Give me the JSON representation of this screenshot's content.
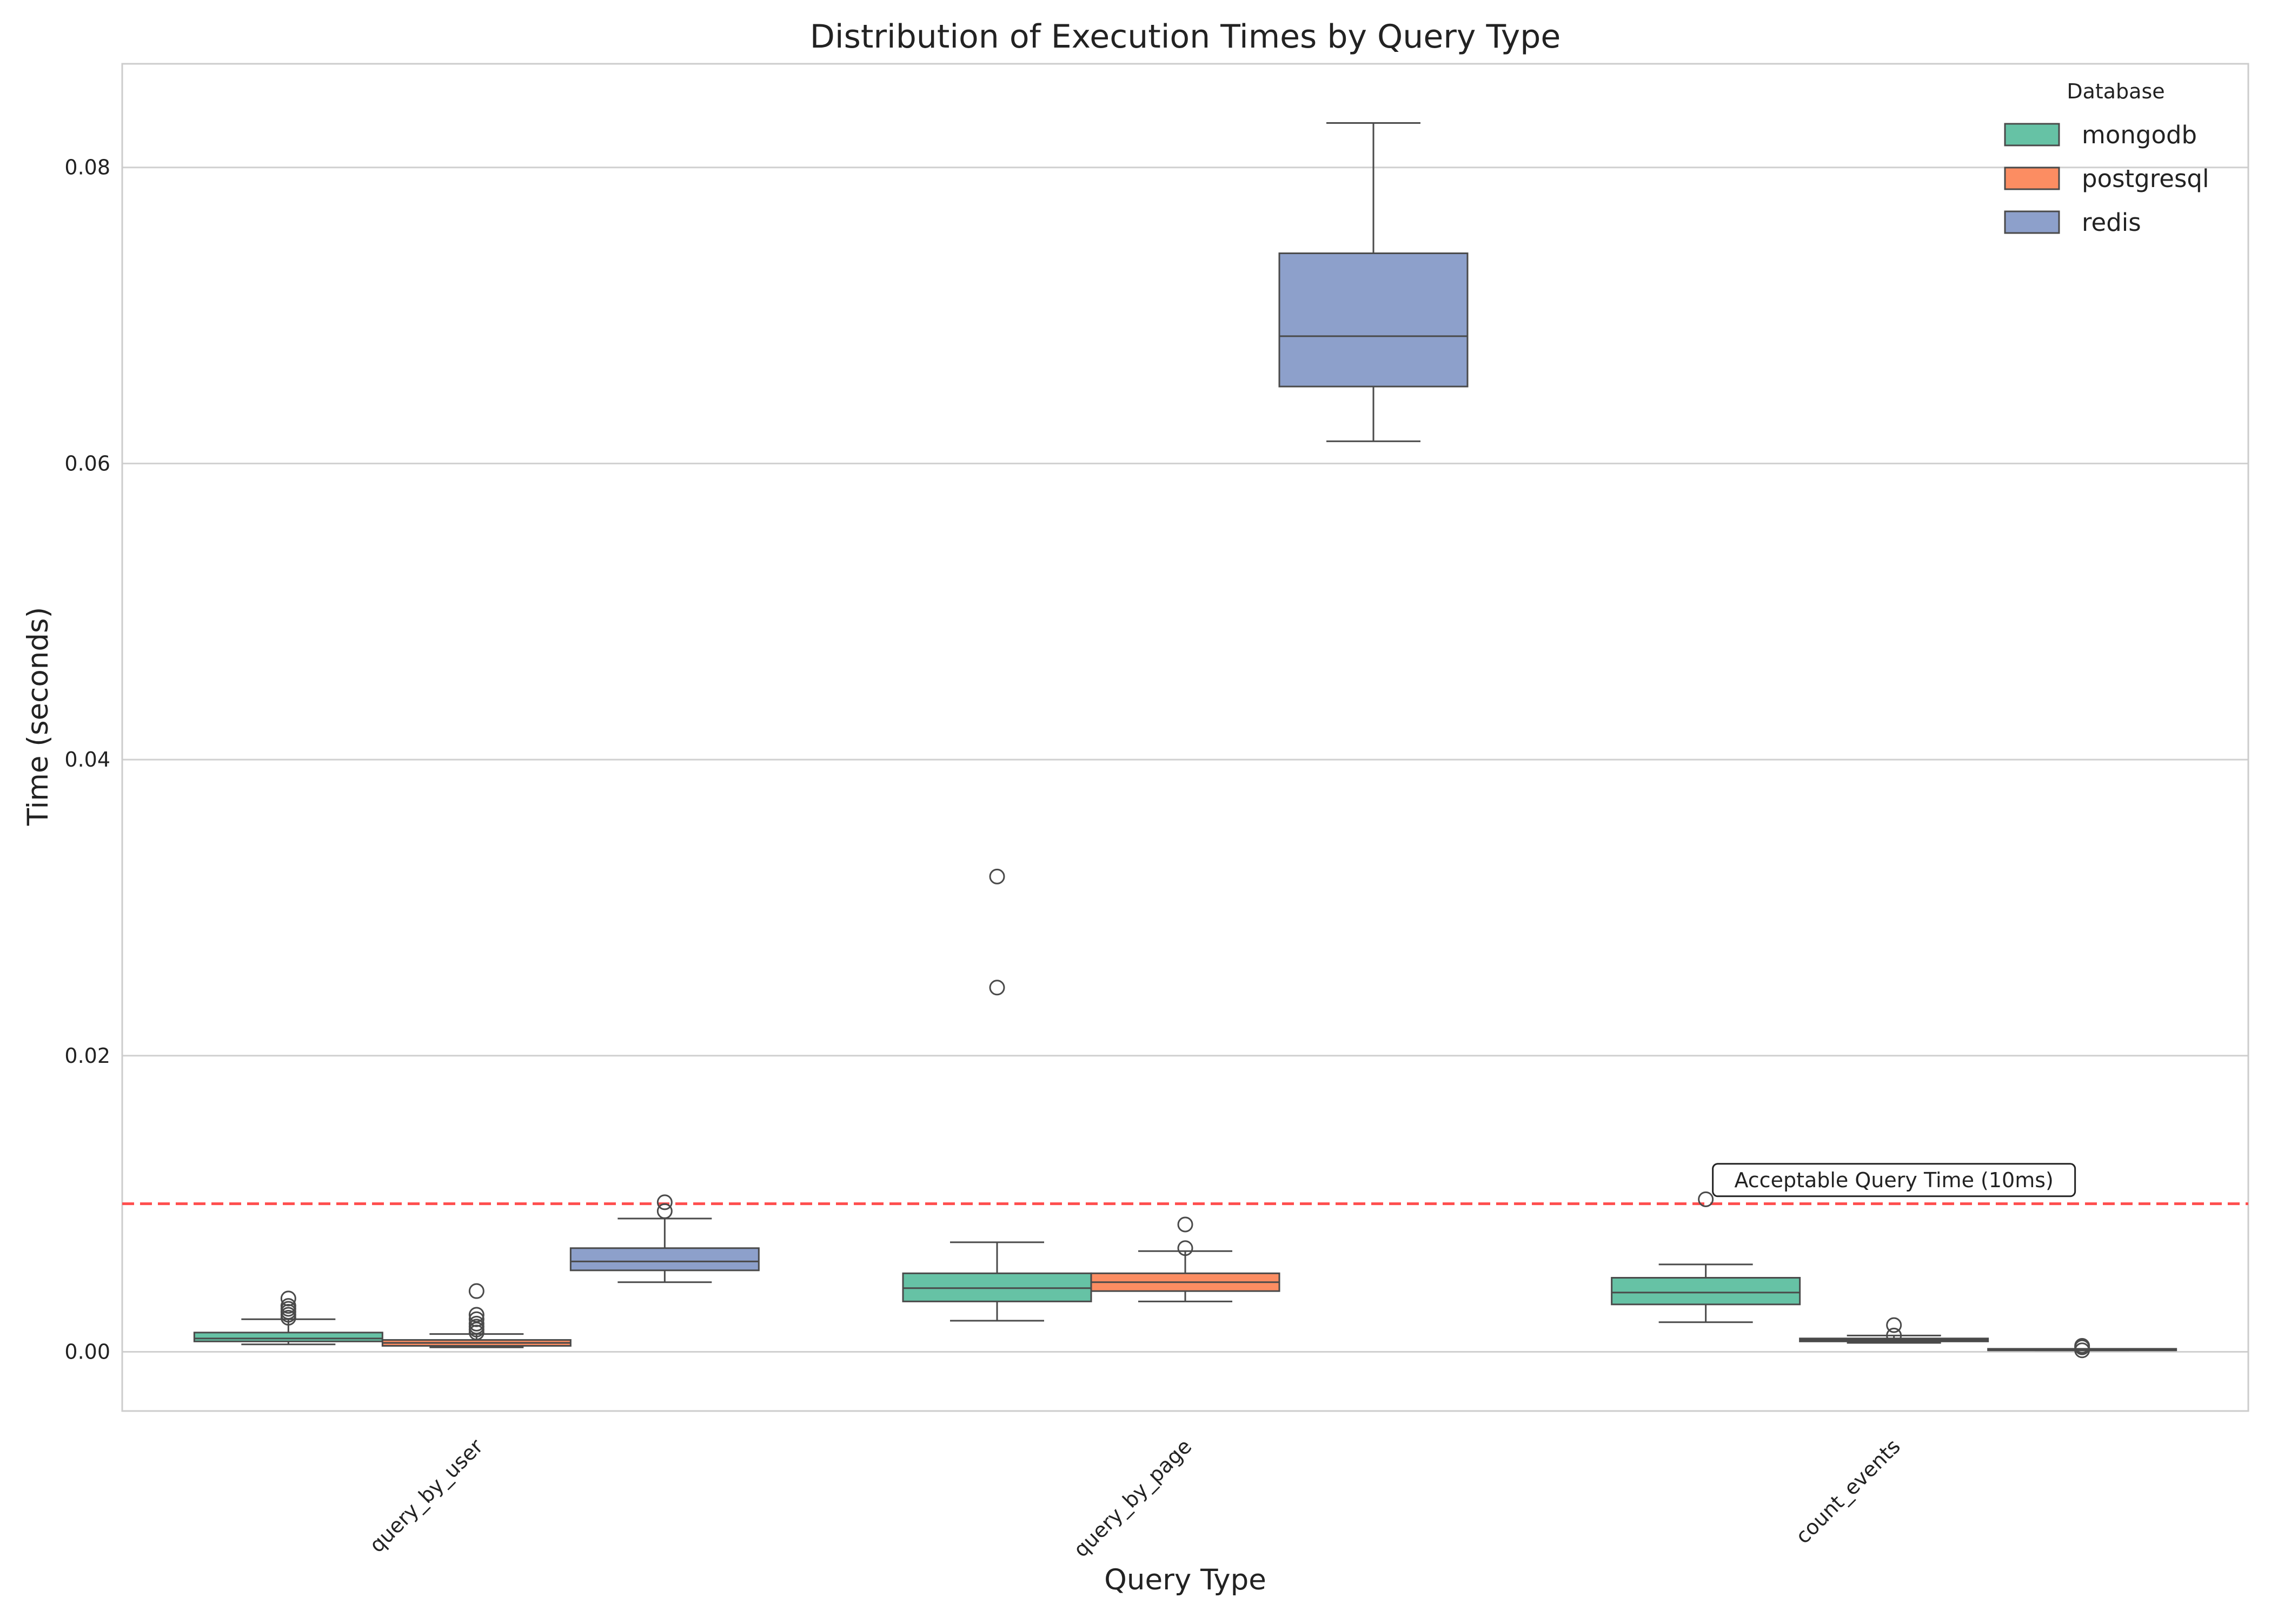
{
  "chart_data": {
    "type": "box",
    "title": "Distribution of Execution Times by Query Type",
    "xlabel": "Query Type",
    "ylabel": "Time (seconds)",
    "ylim": [
      -0.004,
      0.087
    ],
    "yticks": [
      0.0,
      0.02,
      0.04,
      0.06,
      0.08
    ],
    "ytick_labels": [
      "0.00",
      "0.02",
      "0.04",
      "0.06",
      "0.08"
    ],
    "grid": "y",
    "categories": [
      "query_by_user",
      "query_by_page",
      "count_events"
    ],
    "legend": {
      "title": "Database",
      "placement": "top-right",
      "entries": [
        "mongodb",
        "postgresql",
        "redis"
      ]
    },
    "series": [
      {
        "name": "mongodb",
        "color": "#66c2a5",
        "boxes": [
          {
            "category": "query_by_user",
            "whisker_low": 0.0005,
            "q1": 0.0007,
            "median": 0.0009,
            "q3": 0.0013,
            "whisker_high": 0.0022,
            "outliers": [
              0.0023,
              0.0025,
              0.0027,
              0.0029,
              0.0031,
              0.0036
            ]
          },
          {
            "category": "query_by_page",
            "whisker_low": 0.0021,
            "q1": 0.0034,
            "median": 0.0043,
            "q3": 0.0053,
            "whisker_high": 0.0074,
            "outliers": [
              0.0246,
              0.0321
            ]
          },
          {
            "category": "count_events",
            "whisker_low": 0.002,
            "q1": 0.0032,
            "median": 0.004,
            "q3": 0.005,
            "whisker_high": 0.0059,
            "outliers": [
              0.0103
            ]
          }
        ]
      },
      {
        "name": "postgresql",
        "color": "#fc8d62",
        "boxes": [
          {
            "category": "query_by_user",
            "whisker_low": 0.0003,
            "q1": 0.0004,
            "median": 0.0006,
            "q3": 0.0008,
            "whisker_high": 0.0012,
            "outliers": [
              0.0013,
              0.0015,
              0.0017,
              0.0019,
              0.0022,
              0.0025,
              0.0041
            ]
          },
          {
            "category": "query_by_page",
            "whisker_low": 0.0034,
            "q1": 0.0041,
            "median": 0.0047,
            "q3": 0.0053,
            "whisker_high": 0.0068,
            "outliers": [
              0.007,
              0.0086
            ]
          },
          {
            "category": "count_events",
            "whisker_low": 0.0006,
            "q1": 0.0007,
            "median": 0.0008,
            "q3": 0.0009,
            "whisker_high": 0.0011,
            "outliers": [
              0.0011,
              0.0018
            ]
          }
        ]
      },
      {
        "name": "redis",
        "color": "#8da0cb",
        "boxes": [
          {
            "category": "query_by_user",
            "whisker_low": 0.0047,
            "q1": 0.0055,
            "median": 0.0061,
            "q3": 0.007,
            "whisker_high": 0.009,
            "outliers": [
              0.0095,
              0.0101
            ]
          },
          {
            "category": "query_by_page",
            "whisker_low": 0.0615,
            "q1": 0.0652,
            "median": 0.0686,
            "q3": 0.0742,
            "whisker_high": 0.083,
            "outliers": []
          },
          {
            "category": "count_events",
            "whisker_low": 0.0001,
            "q1": 0.0001,
            "median": 0.0001,
            "q3": 0.0002,
            "whisker_high": 0.0002,
            "outliers": [
              0.0001,
              0.0003,
              0.0004
            ]
          }
        ]
      }
    ],
    "reference_line": {
      "y": 0.01,
      "color": "#ff4d4d",
      "style": "dashed"
    },
    "annotation": {
      "text": "Acceptable Query Time (10ms)",
      "x_category": "count_events",
      "y": 0.0116
    }
  }
}
